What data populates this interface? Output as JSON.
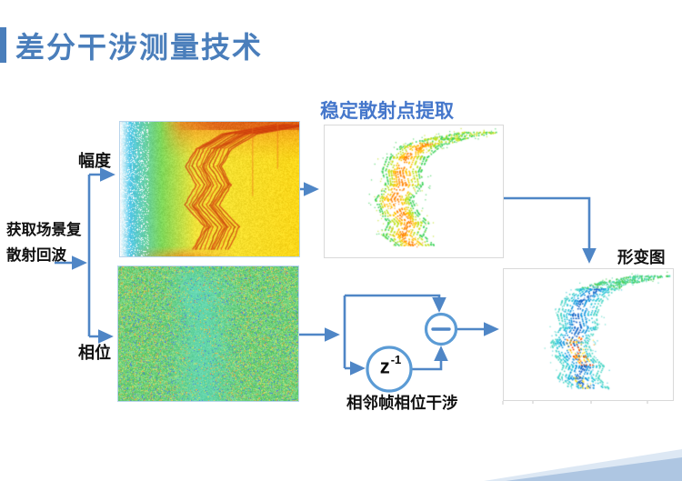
{
  "slide": {
    "title": "差分干涉测量技术"
  },
  "labels": {
    "amplitude": "幅度",
    "phase": "相位",
    "source_line1": "获取场景复",
    "source_line2": "散射回波",
    "stable_extraction": "稳定散射点提取",
    "deformation": "形变图",
    "interference": "相邻帧相位干涉",
    "delay_base": "z",
    "delay_exponent": "-1"
  },
  "colors": {
    "title_blue": "#4a7ebb",
    "label_blue": "#4577cb",
    "arrow_blue": "#4f86c6",
    "node_blue": "#5b9bd5",
    "panel_border": "#d9d9d9",
    "image_border": "#b9d5ec",
    "wedge_light": "#dde8f4",
    "wedge_dark": "#aec6e2"
  },
  "figures": {
    "amplitude": {
      "palette": [
        "#f8fcff",
        "#52c8e8",
        "#7ed85a",
        "#f2e43a",
        "#f08a1e",
        "#d03810"
      ]
    },
    "phase": {
      "palette": [
        "#6fd07a",
        "#5ed8c0",
        "#4a7fe0",
        "#e8a84a",
        "#d8e25e"
      ]
    },
    "stable": {
      "palette": {
        "tail": "#3ed45c",
        "outer": "#3ed45c",
        "mid": "#bfe11c",
        "inner": "#ffc400",
        "core": "#ff8400"
      }
    },
    "deformation": {
      "palette": {
        "tail": "#46cf58",
        "tail2": "#49d8b0",
        "outer": "#52d8c8",
        "mid": "#2fc8d8",
        "inner": "#1b9ae0",
        "core": "#1565c8",
        "hot": [
          "#ff3d00",
          "#ff9100",
          "#ffe32a"
        ]
      }
    }
  }
}
